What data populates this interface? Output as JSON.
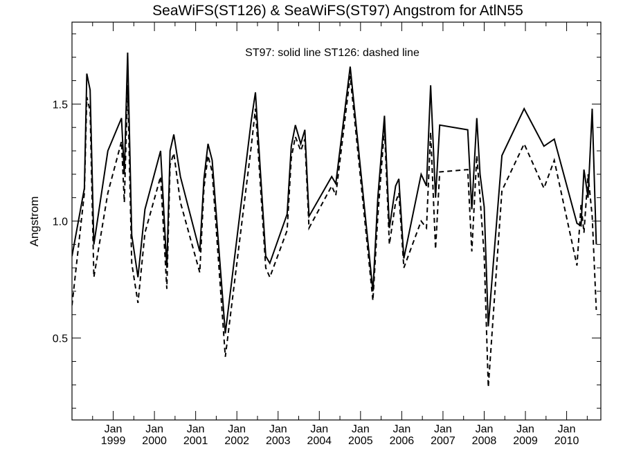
{
  "chart_data": {
    "type": "line",
    "title": "SeaWiFS(ST126) & SeaWiFS(ST97)  Angstrom for AtlN55",
    "xlabel": "",
    "ylabel": "Angstrom",
    "annotation": "ST97: solid line   ST126: dashed line",
    "x_range": [
      1998.0,
      2010.83
    ],
    "ylim": [
      0.15,
      1.85
    ],
    "y_ticks": [
      0.5,
      1.0,
      1.5
    ],
    "y_tick_labels": [
      "0.5",
      "1.0",
      "1.5"
    ],
    "x_ticks": [
      {
        "x": 1999.0,
        "month": "Jan",
        "year": "1999"
      },
      {
        "x": 2000.0,
        "month": "Jan",
        "year": "2000"
      },
      {
        "x": 2001.0,
        "month": "Jan",
        "year": "2001"
      },
      {
        "x": 2002.0,
        "month": "Jan",
        "year": "2002"
      },
      {
        "x": 2003.0,
        "month": "Jan",
        "year": "2003"
      },
      {
        "x": 2004.0,
        "month": "Jan",
        "year": "2004"
      },
      {
        "x": 2005.0,
        "month": "Jan",
        "year": "2005"
      },
      {
        "x": 2006.0,
        "month": "Jan",
        "year": "2006"
      },
      {
        "x": 2007.0,
        "month": "Jan",
        "year": "2007"
      },
      {
        "x": 2008.0,
        "month": "Jan",
        "year": "2008"
      },
      {
        "x": 2009.0,
        "month": "Jan",
        "year": "2009"
      },
      {
        "x": 2010.0,
        "month": "Jan",
        "year": "2010"
      }
    ],
    "series": [
      {
        "name": "ST97",
        "style": "solid",
        "color": "#000000",
        "points": [
          [
            1998.0,
            0.85
          ],
          [
            1998.3,
            1.14
          ],
          [
            1998.36,
            1.63
          ],
          [
            1998.44,
            1.56
          ],
          [
            1998.53,
            0.9
          ],
          [
            1998.87,
            1.3
          ],
          [
            1999.2,
            1.44
          ],
          [
            1999.27,
            1.2
          ],
          [
            1999.35,
            1.72
          ],
          [
            1999.45,
            0.94
          ],
          [
            1999.6,
            0.76
          ],
          [
            1999.77,
            1.05
          ],
          [
            2000.15,
            1.3
          ],
          [
            2000.3,
            0.8
          ],
          [
            2000.38,
            1.3
          ],
          [
            2000.47,
            1.37
          ],
          [
            2000.63,
            1.19
          ],
          [
            2001.1,
            0.87
          ],
          [
            2001.2,
            1.18
          ],
          [
            2001.3,
            1.33
          ],
          [
            2001.4,
            1.26
          ],
          [
            2001.72,
            0.52
          ],
          [
            2002.35,
            1.43
          ],
          [
            2002.45,
            1.55
          ],
          [
            2002.7,
            0.85
          ],
          [
            2002.8,
            0.82
          ],
          [
            2003.22,
            1.03
          ],
          [
            2003.32,
            1.32
          ],
          [
            2003.42,
            1.41
          ],
          [
            2003.55,
            1.33
          ],
          [
            2003.65,
            1.39
          ],
          [
            2003.75,
            1.02
          ],
          [
            2004.3,
            1.19
          ],
          [
            2004.4,
            1.16
          ],
          [
            2004.75,
            1.66
          ],
          [
            2005.3,
            0.7
          ],
          [
            2005.42,
            1.1
          ],
          [
            2005.58,
            1.45
          ],
          [
            2005.7,
            0.97
          ],
          [
            2005.85,
            1.15
          ],
          [
            2005.93,
            1.18
          ],
          [
            2006.05,
            0.84
          ],
          [
            2006.47,
            1.2
          ],
          [
            2006.6,
            1.15
          ],
          [
            2006.7,
            1.58
          ],
          [
            2006.82,
            1.1
          ],
          [
            2006.92,
            1.41
          ],
          [
            2007.6,
            1.39
          ],
          [
            2007.7,
            1.05
          ],
          [
            2007.82,
            1.44
          ],
          [
            2007.9,
            1.2
          ],
          [
            2008.0,
            1.06
          ],
          [
            2008.1,
            0.55
          ],
          [
            2008.43,
            1.28
          ],
          [
            2008.97,
            1.48
          ],
          [
            2009.45,
            1.32
          ],
          [
            2009.7,
            1.35
          ],
          [
            2010.25,
            0.99
          ],
          [
            2010.35,
            0.98
          ],
          [
            2010.42,
            1.22
          ],
          [
            2010.52,
            1.1
          ],
          [
            2010.62,
            1.48
          ],
          [
            2010.72,
            0.9
          ]
        ]
      },
      {
        "name": "ST126",
        "style": "dashed",
        "color": "#000000",
        "points": [
          [
            1998.0,
            0.64
          ],
          [
            1998.3,
            1.12
          ],
          [
            1998.36,
            1.53
          ],
          [
            1998.44,
            1.47
          ],
          [
            1998.53,
            0.76
          ],
          [
            1998.87,
            1.12
          ],
          [
            1999.2,
            1.34
          ],
          [
            1999.27,
            1.08
          ],
          [
            1999.35,
            1.58
          ],
          [
            1999.45,
            0.82
          ],
          [
            1999.6,
            0.65
          ],
          [
            1999.77,
            0.95
          ],
          [
            2000.15,
            1.19
          ],
          [
            2000.3,
            0.71
          ],
          [
            2000.38,
            1.24
          ],
          [
            2000.47,
            1.29
          ],
          [
            2000.63,
            1.08
          ],
          [
            2001.1,
            0.78
          ],
          [
            2001.2,
            1.14
          ],
          [
            2001.3,
            1.28
          ],
          [
            2001.4,
            1.21
          ],
          [
            2001.72,
            0.42
          ],
          [
            2002.35,
            1.32
          ],
          [
            2002.45,
            1.48
          ],
          [
            2002.7,
            0.8
          ],
          [
            2002.8,
            0.76
          ],
          [
            2003.22,
            0.96
          ],
          [
            2003.32,
            1.27
          ],
          [
            2003.42,
            1.36
          ],
          [
            2003.55,
            1.3
          ],
          [
            2003.65,
            1.35
          ],
          [
            2003.75,
            0.97
          ],
          [
            2004.3,
            1.15
          ],
          [
            2004.4,
            1.11
          ],
          [
            2004.75,
            1.62
          ],
          [
            2005.3,
            0.66
          ],
          [
            2005.42,
            1.02
          ],
          [
            2005.58,
            1.4
          ],
          [
            2005.7,
            0.9
          ],
          [
            2005.85,
            1.08
          ],
          [
            2005.93,
            1.12
          ],
          [
            2006.05,
            0.8
          ],
          [
            2006.47,
            1.0
          ],
          [
            2006.6,
            0.97
          ],
          [
            2006.7,
            1.38
          ],
          [
            2006.82,
            0.88
          ],
          [
            2006.92,
            1.21
          ],
          [
            2007.6,
            1.22
          ],
          [
            2007.7,
            0.87
          ],
          [
            2007.82,
            1.28
          ],
          [
            2007.9,
            1.1
          ],
          [
            2008.0,
            0.85
          ],
          [
            2008.1,
            0.29
          ],
          [
            2008.43,
            1.13
          ],
          [
            2008.97,
            1.33
          ],
          [
            2009.45,
            1.14
          ],
          [
            2009.7,
            1.26
          ],
          [
            2010.25,
            0.81
          ],
          [
            2010.35,
            1.07
          ],
          [
            2010.42,
            0.95
          ],
          [
            2010.52,
            1.2
          ],
          [
            2010.62,
            1.02
          ],
          [
            2010.72,
            0.62
          ]
        ]
      }
    ],
    "grid": false,
    "legend": "none"
  }
}
